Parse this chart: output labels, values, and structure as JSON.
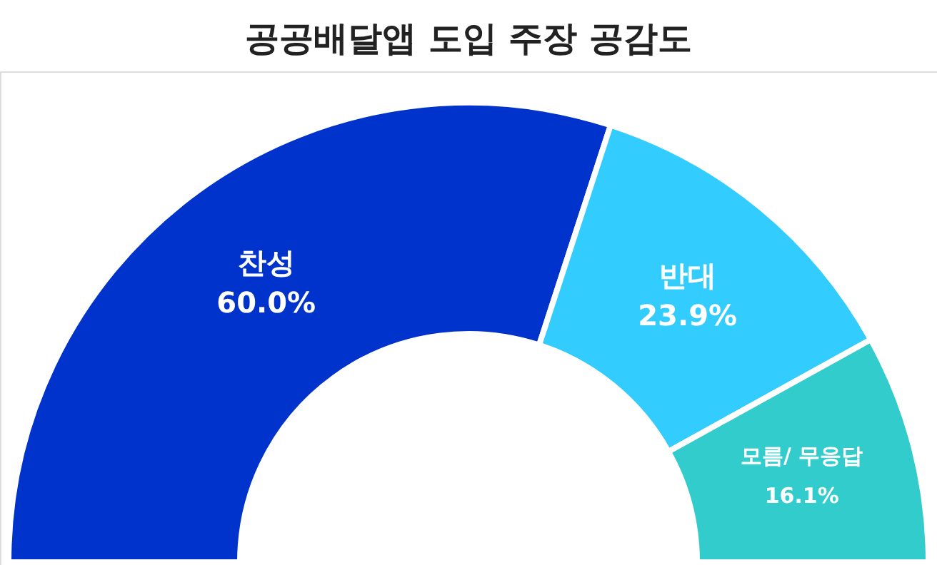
{
  "chart_data": {
    "type": "donut",
    "title": "공공배달앱 도입 주장 공감도",
    "categories": [
      "찬성",
      "반대",
      "모름/ 무응답"
    ],
    "values": [
      60.0,
      23.9,
      16.1
    ],
    "colors": [
      "#0033cc",
      "#33ccff",
      "#33cccc"
    ],
    "value_labels": [
      "60.0%",
      "23.9%",
      "16.1%"
    ]
  }
}
